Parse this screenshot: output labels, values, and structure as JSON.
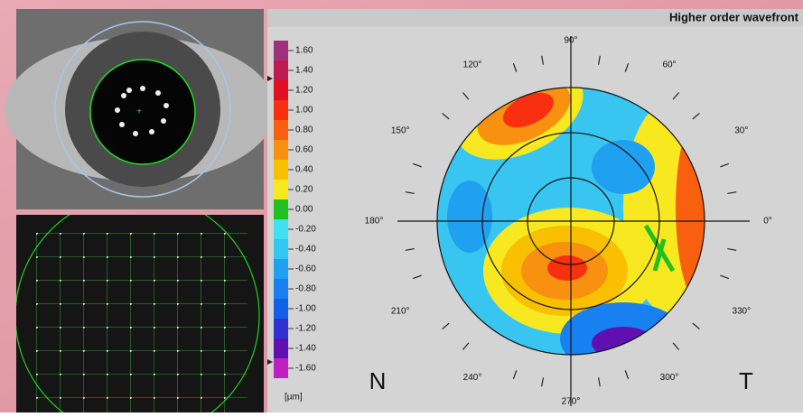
{
  "header": {
    "title": "Higher order wavefront"
  },
  "scale": {
    "unit": "[µm]",
    "levels": [
      {
        "label": "1.60",
        "color": "#a0307a"
      },
      {
        "label": "1.40",
        "color": "#c01850"
      },
      {
        "label": "1.20",
        "color": "#e01020"
      },
      {
        "label": "1.00",
        "color": "#f83010"
      },
      {
        "label": "0.80",
        "color": "#f86010"
      },
      {
        "label": "0.60",
        "color": "#f89010"
      },
      {
        "label": "0.40",
        "color": "#f8c000"
      },
      {
        "label": "0.20",
        "color": "#f8e820"
      },
      {
        "label": "0.00",
        "color": "#20c020"
      },
      {
        "label": "-0.20",
        "color": "#40e0f0"
      },
      {
        "label": "-0.40",
        "color": "#30c8f0"
      },
      {
        "label": "-0.60",
        "color": "#20a0f0"
      },
      {
        "label": "-0.80",
        "color": "#1880f0"
      },
      {
        "label": "-1.00",
        "color": "#1060e8"
      },
      {
        "label": "-1.20",
        "color": "#3030d0"
      },
      {
        "label": "-1.40",
        "color": "#6010b0"
      },
      {
        "label": "-1.60",
        "color": "#c020c0"
      }
    ]
  },
  "polar": {
    "angles": [
      "0°",
      "30°",
      "60°",
      "90°",
      "120°",
      "150°",
      "180°",
      "210°",
      "240°",
      "270°",
      "300°",
      "330°"
    ],
    "nasal": "N",
    "temporal": "T"
  }
}
